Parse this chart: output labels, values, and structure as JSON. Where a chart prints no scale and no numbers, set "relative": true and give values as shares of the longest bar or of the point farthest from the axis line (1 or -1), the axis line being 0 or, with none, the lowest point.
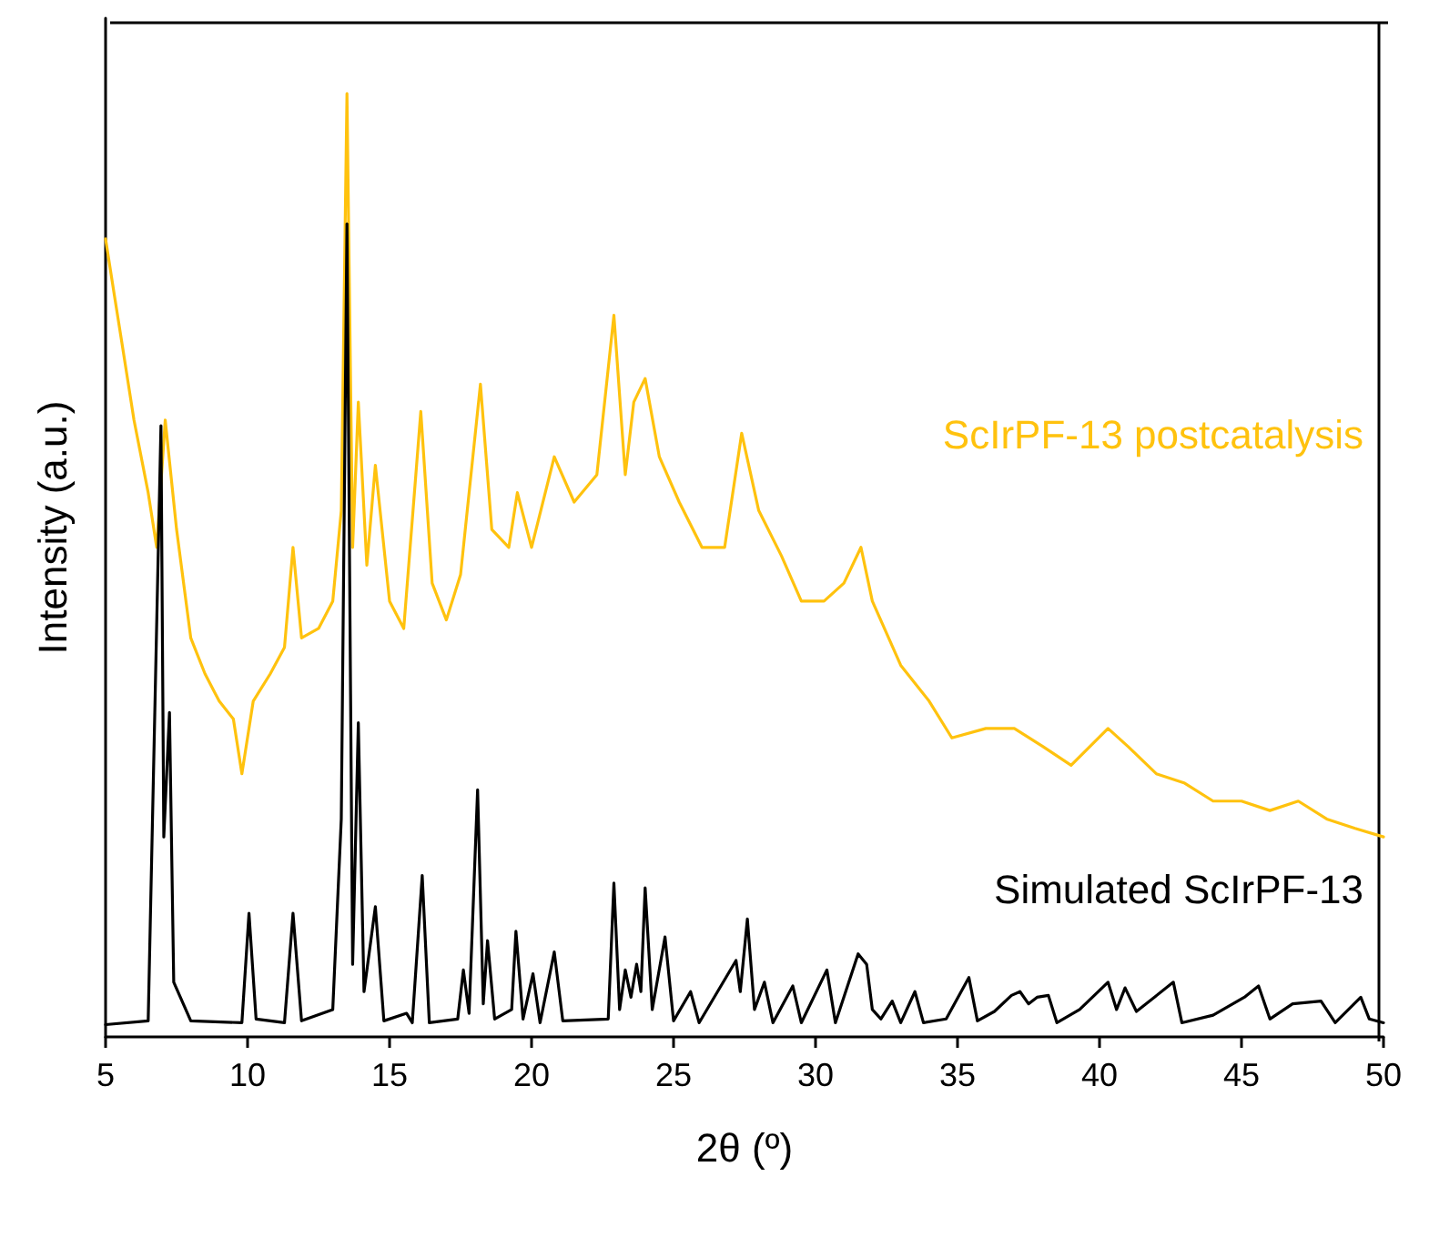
{
  "chart_data": {
    "type": "line",
    "relative": true,
    "xlabel": "2θ (º)",
    "ylabel": "Intensity (a.u.)",
    "xlim": [
      5,
      50
    ],
    "xticks": [
      5,
      10,
      15,
      20,
      25,
      30,
      35,
      40,
      45,
      50
    ],
    "grid": false,
    "legend": false,
    "marker": "none",
    "line_style": "solid",
    "series": [
      {
        "name": "ScIrPF-13 postcatalysis",
        "color": "#ffc20e",
        "x": [
          5,
          5.3,
          5.6,
          6,
          6.5,
          6.8,
          7.1,
          7.5,
          8,
          8.5,
          9,
          9.5,
          9.8,
          10.2,
          10.8,
          11.3,
          11.6,
          11.9,
          12.5,
          13,
          13.3,
          13.5,
          13.7,
          13.9,
          14.2,
          14.5,
          15,
          15.5,
          16.1,
          16.5,
          17,
          17.5,
          18.2,
          18.6,
          19.2,
          19.5,
          20,
          20.8,
          21.5,
          22.3,
          22.9,
          23.3,
          23.6,
          24,
          24.5,
          25.2,
          26,
          26.8,
          27.4,
          28,
          28.8,
          29.5,
          30.3,
          31,
          31.6,
          32,
          33,
          34,
          34.8,
          36,
          37,
          38,
          39,
          40.3,
          41,
          42,
          43,
          44,
          45,
          46,
          47,
          48,
          49,
          50
        ],
        "values": [
          0.846,
          0.788,
          0.731,
          0.654,
          0.577,
          0.519,
          0.654,
          0.538,
          0.423,
          0.385,
          0.356,
          0.337,
          0.279,
          0.356,
          0.385,
          0.413,
          0.519,
          0.423,
          0.433,
          0.462,
          0.558,
          1,
          0.519,
          0.673,
          0.5,
          0.606,
          0.462,
          0.433,
          0.663,
          0.481,
          0.442,
          0.49,
          0.692,
          0.538,
          0.519,
          0.577,
          0.519,
          0.615,
          0.567,
          0.596,
          0.765,
          0.596,
          0.673,
          0.698,
          0.615,
          0.567,
          0.519,
          0.519,
          0.64,
          0.558,
          0.51,
          0.462,
          0.462,
          0.481,
          0.519,
          0.462,
          0.394,
          0.356,
          0.317,
          0.327,
          0.327,
          0.308,
          0.288,
          0.327,
          0.308,
          0.279,
          0.269,
          0.25,
          0.25,
          0.24,
          0.25,
          0.231,
          0.221,
          0.212
        ]
      },
      {
        "name": "Simulated ScIrPF-13",
        "color": "#000000",
        "x": [
          5,
          6.5,
          6.95,
          7.05,
          7.25,
          7.4,
          8,
          9.8,
          10.05,
          10.3,
          11.3,
          11.6,
          11.9,
          13,
          13.3,
          13.5,
          13.7,
          13.9,
          14.1,
          14.5,
          14.8,
          15.6,
          15.8,
          16.15,
          16.4,
          17.4,
          17.6,
          17.8,
          18.1,
          18.3,
          18.45,
          18.7,
          19.3,
          19.45,
          19.7,
          20.05,
          20.3,
          20.8,
          21.1,
          22.7,
          22.9,
          23.1,
          23.3,
          23.5,
          23.7,
          23.85,
          24,
          24.25,
          24.7,
          25,
          25.6,
          25.9,
          27.2,
          27.35,
          27.6,
          27.85,
          28.2,
          28.5,
          29.2,
          29.5,
          30.4,
          30.7,
          31.5,
          31.8,
          32,
          32.3,
          32.7,
          33,
          33.5,
          33.8,
          34.6,
          35.4,
          35.7,
          36.3,
          36.9,
          37.2,
          37.5,
          37.8,
          38.2,
          38.5,
          39.3,
          40.3,
          40.6,
          40.9,
          41.3,
          42.6,
          42.9,
          44,
          45.1,
          45.6,
          46,
          46.8,
          47.8,
          48.3,
          49.2,
          49.5,
          50
        ],
        "values": [
          0.013,
          0.017,
          0.648,
          0.212,
          0.344,
          0.058,
          0.017,
          0.015,
          0.131,
          0.019,
          0.015,
          0.131,
          0.017,
          0.029,
          0.231,
          0.862,
          0.077,
          0.333,
          0.048,
          0.138,
          0.017,
          0.025,
          0.015,
          0.171,
          0.015,
          0.019,
          0.071,
          0.025,
          0.262,
          0.035,
          0.102,
          0.019,
          0.029,
          0.112,
          0.019,
          0.067,
          0.015,
          0.09,
          0.017,
          0.019,
          0.163,
          0.029,
          0.071,
          0.042,
          0.077,
          0.048,
          0.158,
          0.029,
          0.106,
          0.017,
          0.048,
          0.015,
          0.081,
          0.048,
          0.125,
          0.029,
          0.058,
          0.015,
          0.054,
          0.015,
          0.071,
          0.015,
          0.088,
          0.077,
          0.029,
          0.019,
          0.038,
          0.015,
          0.048,
          0.015,
          0.019,
          0.063,
          0.017,
          0.027,
          0.044,
          0.048,
          0.035,
          0.042,
          0.044,
          0.015,
          0.029,
          0.058,
          0.029,
          0.052,
          0.027,
          0.058,
          0.015,
          0.023,
          0.042,
          0.054,
          0.019,
          0.035,
          0.038,
          0.015,
          0.042,
          0.019,
          0.015
        ]
      }
    ]
  }
}
